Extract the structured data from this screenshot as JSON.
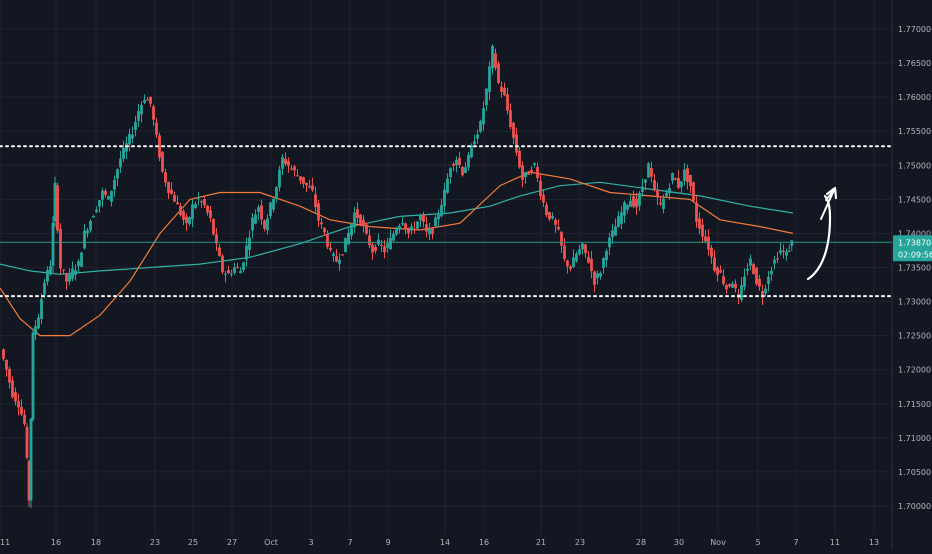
{
  "chart_data": {
    "type": "candlestick",
    "y_axis": {
      "ylim": [
        1.6985,
        1.7718
      ],
      "ticks": [
        1.77,
        1.765,
        1.76,
        1.755,
        1.75,
        1.745,
        1.74,
        1.735,
        1.73,
        1.725,
        1.72,
        1.715,
        1.71,
        1.705,
        1.7
      ],
      "tick_labels": [
        "1.77000",
        "1.76500",
        "1.76000",
        "1.75500",
        "1.75000",
        "1.74500",
        "1.74000",
        "1.73500",
        "1.73000",
        "1.72500",
        "1.72000",
        "1.71500",
        "1.71000",
        "1.70500",
        "1.70000"
      ]
    },
    "x_axis": {
      "tick_labels": [
        {
          "label": "11",
          "x": 0
        },
        {
          "label": "16",
          "x": 56
        },
        {
          "label": "18",
          "x": 96
        },
        {
          "label": "23",
          "x": 155
        },
        {
          "label": "25",
          "x": 193
        },
        {
          "label": "27",
          "x": 232
        },
        {
          "label": "Oct",
          "x": 271
        },
        {
          "label": "3",
          "x": 311
        },
        {
          "label": "7",
          "x": 350
        },
        {
          "label": "9",
          "x": 388
        },
        {
          "label": "14",
          "x": 445
        },
        {
          "label": "16",
          "x": 484
        },
        {
          "label": "21",
          "x": 541
        },
        {
          "label": "23",
          "x": 580
        },
        {
          "label": "28",
          "x": 641
        },
        {
          "label": "30",
          "x": 679
        },
        {
          "label": "Nov",
          "x": 718
        },
        {
          "label": "5",
          "x": 758
        },
        {
          "label": "7",
          "x": 796
        },
        {
          "label": "11",
          "x": 835
        },
        {
          "label": "13",
          "x": 874
        }
      ]
    },
    "last_candle_x": 793,
    "price_path": [
      {
        "x": 2,
        "p": 1.723
      },
      {
        "x": 8,
        "p": 1.72
      },
      {
        "x": 14,
        "p": 1.7165
      },
      {
        "x": 20,
        "p": 1.715
      },
      {
        "x": 26,
        "p": 1.712
      },
      {
        "x": 30,
        "p": 1.701
      },
      {
        "x": 34,
        "p": 1.725
      },
      {
        "x": 40,
        "p": 1.728
      },
      {
        "x": 46,
        "p": 1.733
      },
      {
        "x": 52,
        "p": 1.7355
      },
      {
        "x": 56,
        "p": 1.747
      },
      {
        "x": 62,
        "p": 1.735
      },
      {
        "x": 68,
        "p": 1.733
      },
      {
        "x": 74,
        "p": 1.7345
      },
      {
        "x": 80,
        "p": 1.7355
      },
      {
        "x": 86,
        "p": 1.74
      },
      {
        "x": 92,
        "p": 1.742
      },
      {
        "x": 98,
        "p": 1.744
      },
      {
        "x": 104,
        "p": 1.746
      },
      {
        "x": 110,
        "p": 1.745
      },
      {
        "x": 116,
        "p": 1.748
      },
      {
        "x": 122,
        "p": 1.751
      },
      {
        "x": 128,
        "p": 1.753
      },
      {
        "x": 134,
        "p": 1.755
      },
      {
        "x": 140,
        "p": 1.758
      },
      {
        "x": 146,
        "p": 1.76
      },
      {
        "x": 152,
        "p": 1.759
      },
      {
        "x": 158,
        "p": 1.754
      },
      {
        "x": 164,
        "p": 1.749
      },
      {
        "x": 170,
        "p": 1.7465
      },
      {
        "x": 176,
        "p": 1.745
      },
      {
        "x": 182,
        "p": 1.743
      },
      {
        "x": 188,
        "p": 1.741
      },
      {
        "x": 194,
        "p": 1.744
      },
      {
        "x": 200,
        "p": 1.745
      },
      {
        "x": 206,
        "p": 1.744
      },
      {
        "x": 212,
        "p": 1.742
      },
      {
        "x": 218,
        "p": 1.738
      },
      {
        "x": 224,
        "p": 1.7345
      },
      {
        "x": 230,
        "p": 1.734
      },
      {
        "x": 236,
        "p": 1.735
      },
      {
        "x": 242,
        "p": 1.7345
      },
      {
        "x": 248,
        "p": 1.738
      },
      {
        "x": 254,
        "p": 1.742
      },
      {
        "x": 260,
        "p": 1.744
      },
      {
        "x": 266,
        "p": 1.741
      },
      {
        "x": 272,
        "p": 1.744
      },
      {
        "x": 278,
        "p": 1.747
      },
      {
        "x": 284,
        "p": 1.751
      },
      {
        "x": 290,
        "p": 1.75
      },
      {
        "x": 296,
        "p": 1.749
      },
      {
        "x": 302,
        "p": 1.748
      },
      {
        "x": 308,
        "p": 1.747
      },
      {
        "x": 314,
        "p": 1.746
      },
      {
        "x": 320,
        "p": 1.742
      },
      {
        "x": 326,
        "p": 1.74
      },
      {
        "x": 332,
        "p": 1.737
      },
      {
        "x": 338,
        "p": 1.736
      },
      {
        "x": 344,
        "p": 1.7375
      },
      {
        "x": 350,
        "p": 1.74
      },
      {
        "x": 356,
        "p": 1.743
      },
      {
        "x": 362,
        "p": 1.742
      },
      {
        "x": 368,
        "p": 1.7395
      },
      {
        "x": 374,
        "p": 1.7375
      },
      {
        "x": 380,
        "p": 1.7385
      },
      {
        "x": 386,
        "p": 1.7375
      },
      {
        "x": 392,
        "p": 1.739
      },
      {
        "x": 398,
        "p": 1.741
      },
      {
        "x": 404,
        "p": 1.742
      },
      {
        "x": 410,
        "p": 1.74
      },
      {
        "x": 416,
        "p": 1.741
      },
      {
        "x": 422,
        "p": 1.7425
      },
      {
        "x": 428,
        "p": 1.74
      },
      {
        "x": 434,
        "p": 1.7405
      },
      {
        "x": 440,
        "p": 1.743
      },
      {
        "x": 446,
        "p": 1.746
      },
      {
        "x": 452,
        "p": 1.75
      },
      {
        "x": 458,
        "p": 1.751
      },
      {
        "x": 464,
        "p": 1.749
      },
      {
        "x": 470,
        "p": 1.751
      },
      {
        "x": 476,
        "p": 1.754
      },
      {
        "x": 482,
        "p": 1.756
      },
      {
        "x": 488,
        "p": 1.761
      },
      {
        "x": 494,
        "p": 1.767
      },
      {
        "x": 500,
        "p": 1.762
      },
      {
        "x": 506,
        "p": 1.76
      },
      {
        "x": 512,
        "p": 1.756
      },
      {
        "x": 518,
        "p": 1.752
      },
      {
        "x": 524,
        "p": 1.748
      },
      {
        "x": 530,
        "p": 1.749
      },
      {
        "x": 536,
        "p": 1.75
      },
      {
        "x": 542,
        "p": 1.746
      },
      {
        "x": 548,
        "p": 1.743
      },
      {
        "x": 554,
        "p": 1.742
      },
      {
        "x": 560,
        "p": 1.74
      },
      {
        "x": 566,
        "p": 1.736
      },
      {
        "x": 572,
        "p": 1.735
      },
      {
        "x": 578,
        "p": 1.737
      },
      {
        "x": 584,
        "p": 1.738
      },
      {
        "x": 590,
        "p": 1.736
      },
      {
        "x": 596,
        "p": 1.733
      },
      {
        "x": 602,
        "p": 1.7345
      },
      {
        "x": 608,
        "p": 1.738
      },
      {
        "x": 614,
        "p": 1.74
      },
      {
        "x": 620,
        "p": 1.742
      },
      {
        "x": 626,
        "p": 1.744
      },
      {
        "x": 632,
        "p": 1.745
      },
      {
        "x": 638,
        "p": 1.744
      },
      {
        "x": 644,
        "p": 1.747
      },
      {
        "x": 650,
        "p": 1.75
      },
      {
        "x": 656,
        "p": 1.746
      },
      {
        "x": 662,
        "p": 1.744
      },
      {
        "x": 668,
        "p": 1.746
      },
      {
        "x": 674,
        "p": 1.7485
      },
      {
        "x": 680,
        "p": 1.747
      },
      {
        "x": 686,
        "p": 1.749
      },
      {
        "x": 692,
        "p": 1.747
      },
      {
        "x": 698,
        "p": 1.742
      },
      {
        "x": 704,
        "p": 1.74
      },
      {
        "x": 710,
        "p": 1.738
      },
      {
        "x": 716,
        "p": 1.735
      },
      {
        "x": 722,
        "p": 1.734
      },
      {
        "x": 728,
        "p": 1.732
      },
      {
        "x": 734,
        "p": 1.733
      },
      {
        "x": 740,
        "p": 1.73
      },
      {
        "x": 746,
        "p": 1.734
      },
      {
        "x": 752,
        "p": 1.736
      },
      {
        "x": 758,
        "p": 1.733
      },
      {
        "x": 764,
        "p": 1.731
      },
      {
        "x": 770,
        "p": 1.734
      },
      {
        "x": 776,
        "p": 1.736
      },
      {
        "x": 782,
        "p": 1.7375
      },
      {
        "x": 788,
        "p": 1.737
      },
      {
        "x": 793,
        "p": 1.7387
      }
    ],
    "ma_orange": [
      {
        "x": 0,
        "p": 1.732
      },
      {
        "x": 20,
        "p": 1.7275
      },
      {
        "x": 40,
        "p": 1.725
      },
      {
        "x": 70,
        "p": 1.725
      },
      {
        "x": 100,
        "p": 1.728
      },
      {
        "x": 130,
        "p": 1.733
      },
      {
        "x": 160,
        "p": 1.74
      },
      {
        "x": 190,
        "p": 1.745
      },
      {
        "x": 220,
        "p": 1.746
      },
      {
        "x": 260,
        "p": 1.746
      },
      {
        "x": 300,
        "p": 1.744
      },
      {
        "x": 330,
        "p": 1.742
      },
      {
        "x": 370,
        "p": 1.741
      },
      {
        "x": 420,
        "p": 1.7405
      },
      {
        "x": 460,
        "p": 1.7415
      },
      {
        "x": 500,
        "p": 1.747
      },
      {
        "x": 530,
        "p": 1.749
      },
      {
        "x": 570,
        "p": 1.748
      },
      {
        "x": 610,
        "p": 1.746
      },
      {
        "x": 650,
        "p": 1.7455
      },
      {
        "x": 690,
        "p": 1.745
      },
      {
        "x": 720,
        "p": 1.742
      },
      {
        "x": 760,
        "p": 1.741
      },
      {
        "x": 793,
        "p": 1.74
      }
    ],
    "ma_teal": [
      {
        "x": 0,
        "p": 1.7355
      },
      {
        "x": 30,
        "p": 1.7345
      },
      {
        "x": 60,
        "p": 1.734
      },
      {
        "x": 100,
        "p": 1.7345
      },
      {
        "x": 150,
        "p": 1.735
      },
      {
        "x": 200,
        "p": 1.7355
      },
      {
        "x": 250,
        "p": 1.7365
      },
      {
        "x": 300,
        "p": 1.7385
      },
      {
        "x": 350,
        "p": 1.741
      },
      {
        "x": 400,
        "p": 1.7425
      },
      {
        "x": 450,
        "p": 1.743
      },
      {
        "x": 490,
        "p": 1.744
      },
      {
        "x": 520,
        "p": 1.7455
      },
      {
        "x": 560,
        "p": 1.747
      },
      {
        "x": 600,
        "p": 1.7475
      },
      {
        "x": 650,
        "p": 1.7465
      },
      {
        "x": 700,
        "p": 1.7455
      },
      {
        "x": 750,
        "p": 1.744
      },
      {
        "x": 793,
        "p": 1.743
      }
    ],
    "levels": {
      "resistance": 1.7528,
      "support": 1.7308,
      "current_price_line": 1.7387
    },
    "price_label": "1.73870",
    "countdown_label": "02:09:56",
    "colors": {
      "background": "#131722",
      "grid": "#2a2e39",
      "up": "#26a69a",
      "down": "#ef5350",
      "ma_orange": "#f57c3a",
      "ma_teal": "#2fb3a6",
      "level": "#ffffff",
      "axis_text": "#b2b5be",
      "price_badge": "#26a69a",
      "arrow": "#ffffff"
    }
  }
}
